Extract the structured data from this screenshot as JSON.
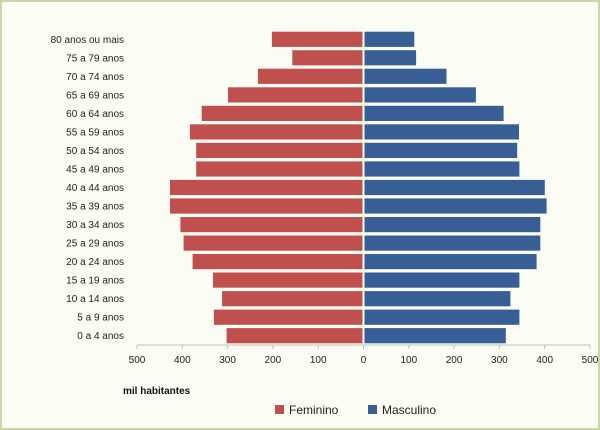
{
  "chart_data": {
    "type": "bar",
    "orientation": "horizontal",
    "subtype": "population-pyramid",
    "categories": [
      "0 a 4 anos",
      "5 a 9 anos",
      "10 a 14 anos",
      "15 a 19 anos",
      "20 a 24 anos",
      "25 a 29 anos",
      "30 a 34 anos",
      "35 a 39 anos",
      "40 a 44 anos",
      "45 a 49 anos",
      "50 a 54 anos",
      "55 a 59 anos",
      "60 a 64 anos",
      "65 a 69 anos",
      "70 a 74 anos",
      "75 a 79 anos",
      "80 anos ou mais"
    ],
    "series": [
      {
        "name": "Feminino",
        "color": "#c0504d",
        "side": "left",
        "values": [
          300,
          328,
          310,
          330,
          375,
          395,
          402,
          425,
          425,
          367,
          367,
          381,
          355,
          297,
          231,
          155,
          200
        ]
      },
      {
        "name": "Masculino",
        "color": "#375f96",
        "side": "right",
        "values": [
          312,
          342,
          322,
          342,
          380,
          388,
          388,
          402,
          398,
          342,
          337,
          341,
          307,
          246,
          181,
          114,
          110
        ]
      }
    ],
    "xlabel": "mil habitantes",
    "xlim": [
      -500,
      500
    ],
    "ticks": [
      "500",
      "400",
      "300",
      "200",
      "100",
      "0",
      "100",
      "200",
      "300",
      "400",
      "500"
    ],
    "legend_position": "bottom",
    "gridlines": false
  }
}
